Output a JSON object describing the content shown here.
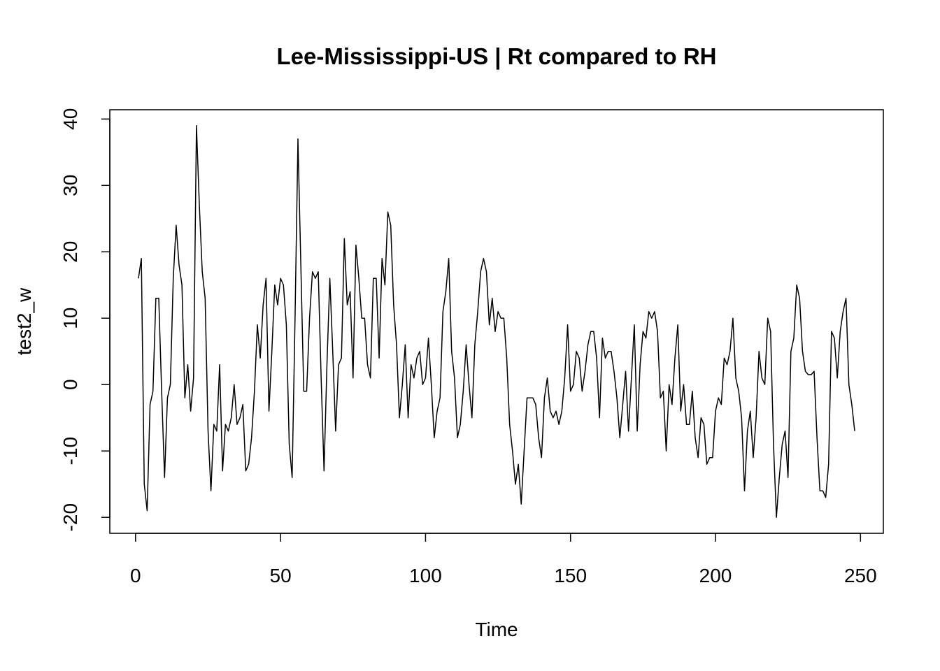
{
  "chart_data": {
    "type": "line",
    "title": "Lee-Mississippi-US | Rt compared to RH",
    "xlabel": "Time",
    "ylabel": "test2_w",
    "xlim": [
      -8.88,
      257.88
    ],
    "ylim": [
      -22.4,
      41.4
    ],
    "xticks": [
      0,
      50,
      100,
      150,
      200,
      250
    ],
    "yticks": [
      -20,
      -10,
      0,
      10,
      20,
      30,
      40
    ],
    "color": "#000000",
    "x": [
      1,
      2,
      3,
      4,
      5,
      6,
      7,
      8,
      9,
      10,
      11,
      12,
      13,
      14,
      15,
      16,
      17,
      18,
      19,
      20,
      21,
      22,
      23,
      24,
      25,
      26,
      27,
      28,
      29,
      30,
      31,
      32,
      33,
      34,
      35,
      36,
      37,
      38,
      39,
      40,
      41,
      42,
      43,
      44,
      45,
      46,
      47,
      48,
      49,
      50,
      51,
      52,
      53,
      54,
      55,
      56,
      57,
      58,
      59,
      60,
      61,
      62,
      63,
      64,
      65,
      66,
      67,
      68,
      69,
      70,
      71,
      72,
      73,
      74,
      75,
      76,
      77,
      78,
      79,
      80,
      81,
      82,
      83,
      84,
      85,
      86,
      87,
      88,
      89,
      90,
      91,
      92,
      93,
      94,
      95,
      96,
      97,
      98,
      99,
      100,
      101,
      102,
      103,
      104,
      105,
      106,
      107,
      108,
      109,
      110,
      111,
      112,
      113,
      114,
      115,
      116,
      117,
      118,
      119,
      120,
      121,
      122,
      123,
      124,
      125,
      126,
      127,
      128,
      129,
      130,
      131,
      132,
      133,
      134,
      135,
      136,
      137,
      138,
      139,
      140,
      141,
      142,
      143,
      144,
      145,
      146,
      147,
      148,
      149,
      150,
      151,
      152,
      153,
      154,
      155,
      156,
      157,
      158,
      159,
      160,
      161,
      162,
      163,
      164,
      165,
      166,
      167,
      168,
      169,
      170,
      171,
      172,
      173,
      174,
      175,
      176,
      177,
      178,
      179,
      180,
      181,
      182,
      183,
      184,
      185,
      186,
      187,
      188,
      189,
      190,
      191,
      192,
      193,
      194,
      195,
      196,
      197,
      198,
      199,
      200,
      201,
      202,
      203,
      204,
      205,
      206,
      207,
      208,
      209,
      210,
      211,
      212,
      213,
      214,
      215,
      216,
      217,
      218,
      219,
      220,
      221,
      222,
      223,
      224,
      225,
      226,
      227,
      228,
      229,
      230,
      231,
      232,
      233,
      234,
      235,
      236,
      237,
      238,
      239,
      240,
      241,
      242,
      243,
      244,
      245,
      246,
      247,
      248
    ],
    "values": [
      16,
      19,
      -15,
      -19,
      -3,
      -1,
      13,
      13,
      -1,
      -14,
      -2,
      0,
      16,
      24,
      18,
      15,
      -2,
      3,
      -4,
      1,
      39,
      27,
      17,
      13,
      -7,
      -16,
      -6,
      -7,
      3,
      -13,
      -6,
      -7,
      -5,
      0,
      -6,
      -5,
      -3,
      -13,
      -12,
      -8,
      -1,
      9,
      4,
      12,
      16,
      -4,
      5,
      15,
      12,
      16,
      15,
      9,
      -9,
      -14,
      10,
      37,
      18,
      -1,
      -1,
      10,
      17,
      16,
      17,
      1,
      -13,
      3,
      16,
      5,
      -7,
      3,
      4,
      22,
      12,
      14,
      1,
      21,
      16,
      10,
      10,
      3,
      1,
      16,
      16,
      4,
      19,
      15,
      26,
      24,
      12,
      6,
      -5,
      0,
      6,
      -5,
      3,
      1,
      4,
      5,
      0,
      1,
      7,
      0,
      -8,
      -4,
      -2,
      11,
      14,
      19,
      5,
      1,
      -8,
      -6,
      -1,
      6,
      0,
      -5,
      6,
      11,
      17,
      19,
      17,
      9,
      13,
      8,
      11,
      10,
      10,
      4,
      -6,
      -10,
      -15,
      -12,
      -18,
      -10,
      -2,
      -2,
      -2,
      -3,
      -8,
      -11,
      -2,
      1,
      -4,
      -5,
      -4,
      -6,
      -4,
      1,
      9,
      -1,
      0,
      5,
      4,
      -1,
      2,
      6,
      8,
      8,
      4,
      -5,
      7,
      4,
      5,
      5,
      2,
      -2,
      -8,
      -3,
      2,
      -7,
      1,
      9,
      -7,
      3,
      8,
      7,
      11,
      10,
      11,
      8,
      -2,
      -1,
      -10,
      0,
      -3,
      4,
      9,
      -4,
      0,
      -6,
      -6,
      -1,
      -8,
      -11,
      -5,
      -6,
      -12,
      -11,
      -11,
      -4,
      -2,
      -3,
      4,
      3,
      5,
      10,
      1,
      -1,
      -5,
      -16,
      -7,
      -4,
      -11,
      -5,
      5,
      1,
      0,
      10,
      8,
      -9,
      -20,
      -14,
      -9,
      -7,
      -14,
      5,
      7,
      15,
      13,
      5,
      2,
      1.5,
      1.5,
      2,
      -8,
      -16,
      -16,
      -17,
      -12,
      8,
      7,
      1,
      8,
      11,
      13,
      0,
      -3,
      -7
    ]
  }
}
